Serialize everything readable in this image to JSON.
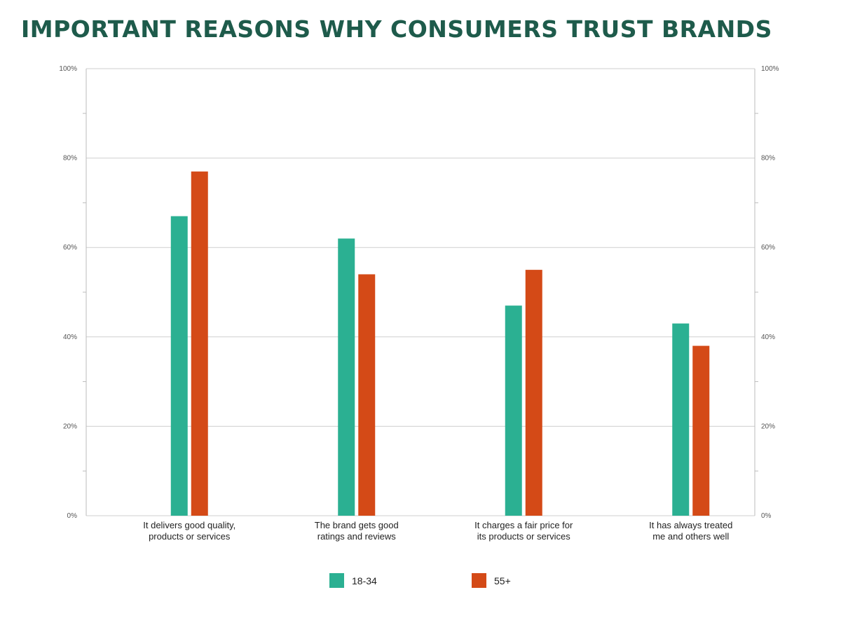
{
  "chart_data": {
    "type": "bar",
    "title": "IMPORTANT REASONS WHY CONSUMERS TRUST BRANDS",
    "categories": [
      [
        "It delivers good quality,",
        "products or services"
      ],
      [
        "The brand gets good",
        "ratings and reviews"
      ],
      [
        "It charges a fair price for",
        "its products or services"
      ],
      [
        "It has always treated",
        "me and others well"
      ]
    ],
    "series": [
      {
        "name": "18-34",
        "color": "#2bb092",
        "values": [
          67,
          62,
          47,
          43
        ]
      },
      {
        "name": "55+",
        "color": "#d44a17",
        "values": [
          77,
          54,
          55,
          38
        ]
      }
    ],
    "ylim": [
      0,
      100
    ],
    "yticks": [
      0,
      20,
      40,
      60,
      80,
      100
    ],
    "ytick_labels": [
      "0%",
      "20%",
      "40%",
      "60%",
      "80%",
      "100%"
    ],
    "grid": true,
    "legend_position": "bottom-center",
    "secondary_axis": "right, mirrors left"
  }
}
